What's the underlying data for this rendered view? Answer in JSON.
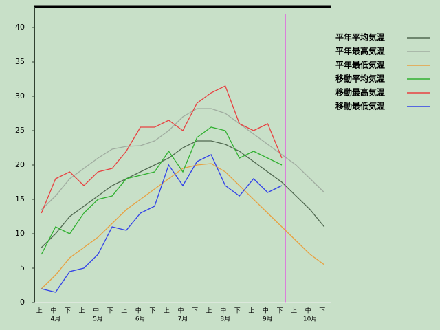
{
  "chart_data": {
    "type": "line",
    "categories": [
      "上",
      "中",
      "下",
      "上",
      "中",
      "下",
      "上",
      "中",
      "下",
      "上",
      "中",
      "下",
      "上",
      "中",
      "下",
      "上",
      "中",
      "下",
      "上",
      "中",
      "下"
    ],
    "month_labels": [
      "4月",
      "5月",
      "6月",
      "7月",
      "8月",
      "9月",
      "10月"
    ],
    "ylim": [
      0,
      43
    ],
    "yticks": [
      0,
      5,
      10,
      15,
      20,
      25,
      30,
      35,
      40
    ],
    "grid": false,
    "series": [
      {
        "name": "平年平均気温",
        "color": "#506850",
        "values": [
          8,
          10,
          12.5,
          14,
          15.5,
          17,
          18,
          19,
          20,
          21,
          22.5,
          23.5,
          23.5,
          23,
          22,
          20.5,
          19,
          17.5,
          15.5,
          13.5,
          11
        ]
      },
      {
        "name": "平年最高気温",
        "color": "#a0aca0",
        "values": [
          13.5,
          15.5,
          18,
          19.5,
          21,
          22.3,
          22.7,
          22.8,
          23.5,
          25,
          27,
          28.2,
          28.2,
          27.5,
          26,
          24.5,
          23,
          21.5,
          20,
          18,
          16
        ]
      },
      {
        "name": "平年最低気温",
        "color": "#e8a040",
        "values": [
          2,
          4,
          6.5,
          8,
          9.5,
          11.5,
          13.5,
          15,
          16.5,
          18,
          19.5,
          20,
          20.2,
          19,
          17,
          15,
          13,
          11,
          9,
          7,
          5.5
        ]
      },
      {
        "name": "移動平均気温",
        "color": "#30b030",
        "values": [
          7,
          11,
          10,
          13,
          15,
          15.5,
          18,
          18.5,
          19,
          22,
          19,
          24,
          25.5,
          25,
          21,
          22,
          21,
          20,
          null,
          null,
          null
        ]
      },
      {
        "name": "移動最高気温",
        "color": "#e84040",
        "values": [
          13,
          18,
          19,
          17,
          19,
          19.5,
          22,
          25.5,
          25.5,
          26.5,
          25,
          29,
          30.5,
          31.5,
          26,
          25,
          26,
          21,
          null,
          null,
          null
        ]
      },
      {
        "name": "移動最低気温",
        "color": "#3040e8",
        "values": [
          2,
          1.5,
          4.5,
          5,
          7,
          11,
          10.5,
          13,
          14,
          20,
          17,
          20.5,
          21.5,
          17,
          15.5,
          18,
          16,
          17,
          null,
          null,
          null
        ]
      }
    ]
  }
}
